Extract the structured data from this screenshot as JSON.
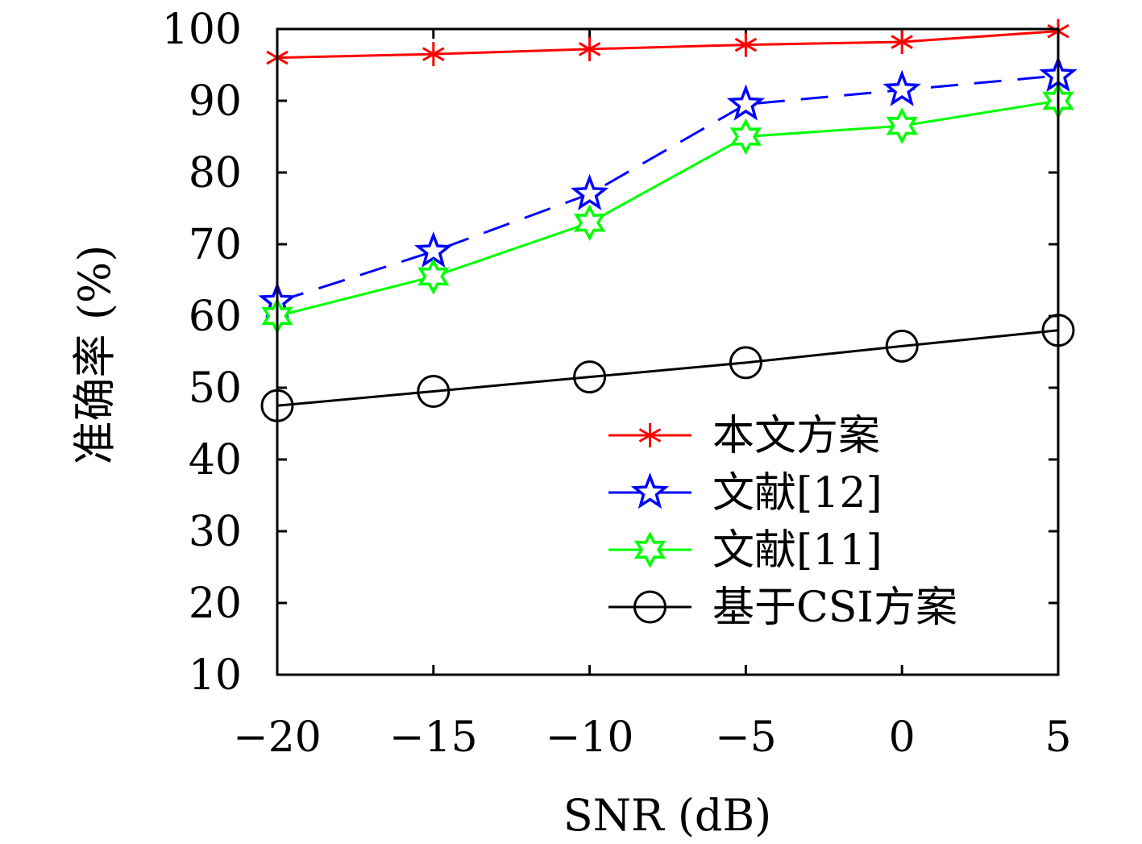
{
  "chart_data": {
    "type": "line",
    "title": "",
    "xlabel": "SNR (dB)",
    "ylabel": "准确率 (%)",
    "x": [
      -20,
      -15,
      -10,
      -5,
      0,
      5
    ],
    "x_tick_labels": [
      "−20",
      "−15",
      "−10",
      "−5",
      "0",
      "5"
    ],
    "y_ticks": [
      10,
      20,
      30,
      40,
      50,
      60,
      70,
      80,
      90,
      100
    ],
    "xlim": [
      -20,
      5
    ],
    "ylim": [
      10,
      100
    ],
    "grid": false,
    "legend_position": "bottom-right",
    "series": [
      {
        "name": "本文方案",
        "values": [
          96.0,
          96.5,
          97.2,
          97.8,
          98.2,
          99.7
        ],
        "color": "#ff0000",
        "line_style": "solid",
        "marker": "asterisk"
      },
      {
        "name": "文献[12]",
        "values": [
          62.0,
          69.0,
          77.0,
          89.5,
          91.5,
          93.5
        ],
        "color": "#0000ff",
        "line_style": "dashed",
        "marker": "five-point-star"
      },
      {
        "name": "文献[11]",
        "values": [
          60.0,
          65.5,
          73.0,
          85.0,
          86.5,
          90.0
        ],
        "color": "#00ff00",
        "line_style": "solid",
        "marker": "six-point-star"
      },
      {
        "name": "基于CSI方案",
        "values": [
          47.5,
          49.5,
          51.5,
          53.5,
          55.8,
          58.0
        ],
        "color": "#000000",
        "line_style": "solid",
        "marker": "circle"
      }
    ]
  }
}
